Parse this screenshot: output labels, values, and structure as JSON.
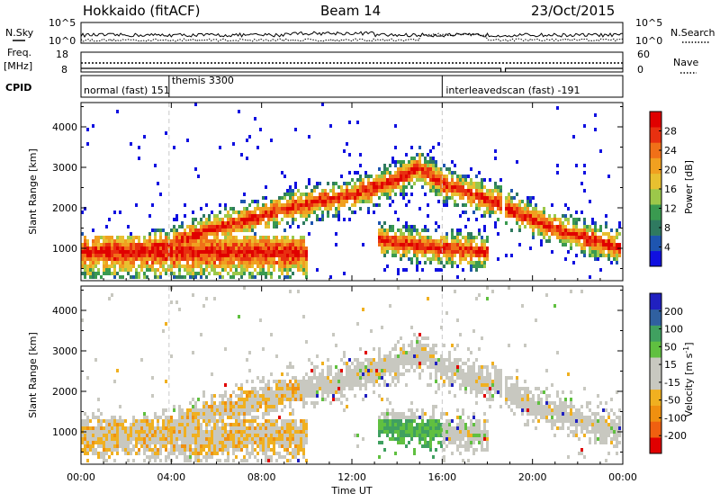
{
  "chart_data": {
    "type": "heatmap",
    "header": {
      "station": "Hokkaido (fitACF)",
      "beam": "Beam 14",
      "date": "23/Oct/2015"
    },
    "top_panels": {
      "nsky_label": "N.Sky",
      "nsky_ticks": [
        "10^5",
        "10^0"
      ],
      "nsearch_label": "N.Search",
      "nsearch_ticks": [
        "10^5",
        "10^0"
      ],
      "freq_label_line1": "Freq.",
      "freq_label_line2": "[MHz]",
      "freq_ticks": [
        "18",
        "8"
      ],
      "nave_label": "Nave",
      "nave_ticks": [
        "60",
        "0"
      ],
      "cpid_label": "CPID",
      "cpid_segments": [
        {
          "name": "normal (fast) 151",
          "start_hour": 0
        },
        {
          "name": "themis 3300",
          "start_hour": 3.9
        },
        {
          "name": "interleavedscan (fast) -191",
          "start_hour": 16
        }
      ]
    },
    "time_axis": {
      "label": "Time UT",
      "range_hours": [
        0,
        24
      ],
      "tick_hours": [
        0,
        4,
        8,
        12,
        16,
        20,
        24
      ],
      "tick_labels": [
        "00:00",
        "04:00",
        "08:00",
        "12:00",
        "16:00",
        "20:00",
        "00:00"
      ],
      "data_gap_hours": [
        18.6,
        18.8
      ]
    },
    "range_axis": {
      "label": "Slant Range [km]",
      "range_km": [
        200,
        4600
      ],
      "ticks": [
        1000,
        2000,
        3000,
        4000
      ]
    },
    "panels": [
      {
        "name": "power",
        "colorbar_label": "Power [dB]",
        "colorbar_ticks": [
          "28",
          "24",
          "20",
          "16",
          "12",
          "8",
          "4"
        ],
        "colorbar_range": [
          0,
          32
        ],
        "colors": [
          "#1010e0",
          "#1e55b0",
          "#2f7a60",
          "#3a9a50",
          "#9cc84a",
          "#e8c030",
          "#f0a020",
          "#f07018",
          "#e83010",
          "#e00000"
        ]
      },
      {
        "name": "velocity",
        "colorbar_label": "Velocity [m s",
        "colorbar_label_sup": "-1",
        "colorbar_label_close": "]",
        "colorbar_ticks": [
          "200",
          "100",
          "50",
          "15",
          "-15",
          "-50",
          "-100",
          "-200"
        ],
        "colorbar_range": [
          -250,
          250
        ],
        "colors": [
          "#e00000",
          "#f06010",
          "#f09010",
          "#f0b020",
          "#c8c8c0",
          "#c8c8c0",
          "#60c040",
          "#40a060",
          "#3060a0",
          "#2020c0"
        ]
      }
    ],
    "echo_bands": [
      {
        "x_hours": [
          0,
          2,
          4,
          6,
          8,
          10,
          12,
          14,
          15,
          16,
          18,
          18.6
        ],
        "range_km": [
          900,
          900,
          1100,
          1500,
          1800,
          2100,
          2300,
          2700,
          3000,
          2600,
          2200,
          2100
        ]
      },
      {
        "x_hours": [
          18.8,
          20,
          22,
          24
        ],
        "range_km": [
          2000,
          1700,
          1300,
          1000
        ]
      },
      {
        "x_hours": [
          13.2,
          14.5,
          16,
          18
        ],
        "range_km": [
          1200,
          1100,
          1000,
          900
        ]
      }
    ]
  }
}
